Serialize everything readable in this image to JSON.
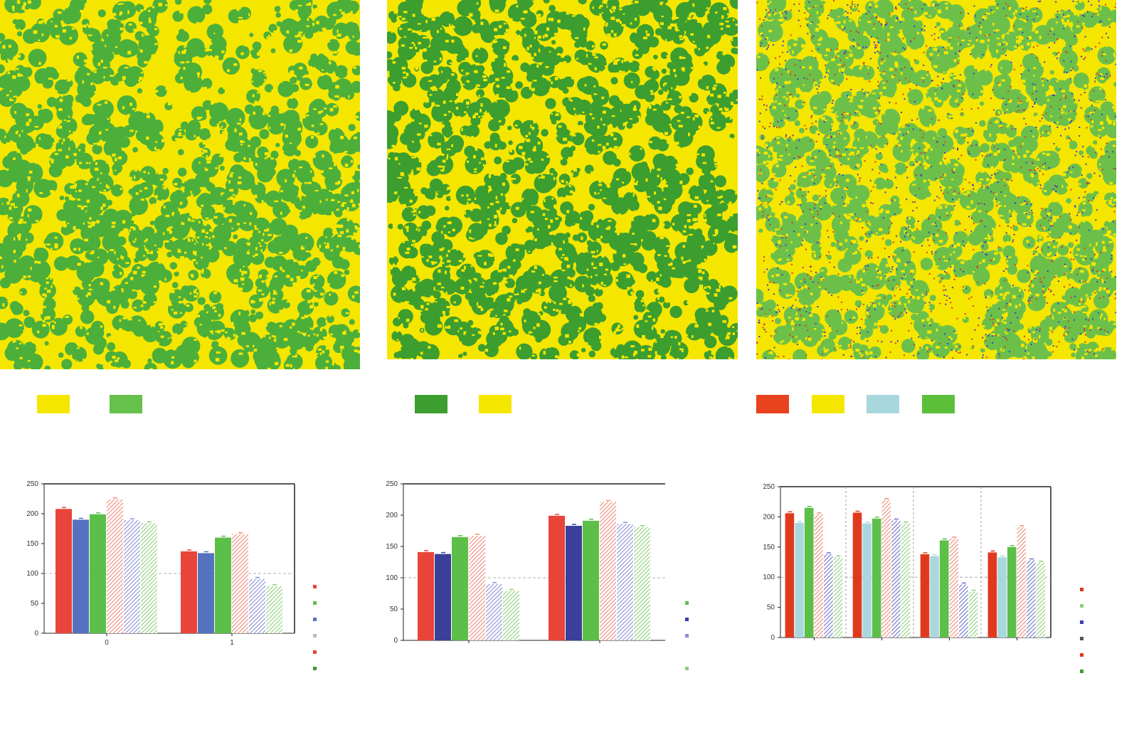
{
  "maps": [
    {
      "name": "map-left",
      "base": "#f5e600",
      "classes": [
        "#f5e600",
        "#4caf3a"
      ]
    },
    {
      "name": "map-middle",
      "base": "#f5e600",
      "classes": [
        "#f5e600",
        "#3c9e2e"
      ]
    },
    {
      "name": "map-right",
      "base": "#f5e600",
      "classes": [
        "#f5e600",
        "#6cc04a",
        "#d93a1f",
        "#3a3fc0"
      ]
    }
  ],
  "legend_swatches": [
    [
      "#f5e600",
      "#66c14a"
    ],
    [
      "#3c9e2e",
      "#f5e600"
    ],
    [
      "#e8421e",
      "#f5e600",
      "#a8d8de",
      "#5cbf3a"
    ]
  ],
  "chart_data": [
    {
      "type": "bar",
      "title": "",
      "xlabel": "",
      "ylabel": "",
      "ylim": [
        0,
        250
      ],
      "yticks": [
        "0",
        "50",
        "100",
        "150",
        "200",
        "250"
      ],
      "categories": [
        "0",
        "1"
      ],
      "series": [
        {
          "color": "#e8443a",
          "style": "solid",
          "values": [
            208,
            137
          ]
        },
        {
          "color": "#5572c0",
          "style": "solid",
          "values": [
            190,
            134
          ]
        },
        {
          "color": "#5cbf4a",
          "style": "solid",
          "values": [
            199,
            160
          ]
        },
        {
          "color": "#f08a7a",
          "style": "hatched",
          "values": [
            224,
            166
          ]
        },
        {
          "color": "#8a90d8",
          "style": "hatched",
          "values": [
            189,
            91
          ]
        },
        {
          "color": "#8ed07a",
          "style": "hatched",
          "values": [
            184,
            79
          ]
        }
      ],
      "legend": {
        "placement": "right",
        "colors": [
          "#e8443a",
          "#5cbf4a",
          "#5572c0",
          "#bbbbbb",
          "#e8443a",
          "#3c9e2e"
        ]
      }
    },
    {
      "type": "bar",
      "title": "",
      "xlabel": "",
      "ylabel": "",
      "ylim": [
        0,
        250
      ],
      "yticks": [
        "0",
        "50",
        "100",
        "150",
        "200",
        "250"
      ],
      "categories": [
        "",
        ""
      ],
      "series": [
        {
          "color": "#e8443a",
          "style": "solid",
          "values": [
            141,
            199
          ]
        },
        {
          "color": "#3a3f9a",
          "style": "solid",
          "values": [
            138,
            183
          ]
        },
        {
          "color": "#5cbf4a",
          "style": "solid",
          "values": [
            165,
            191
          ]
        },
        {
          "color": "#f08a7a",
          "style": "hatched",
          "values": [
            167,
            221
          ]
        },
        {
          "color": "#8a90d8",
          "style": "hatched",
          "values": [
            90,
            186
          ]
        },
        {
          "color": "#8ed07a",
          "style": "hatched",
          "values": [
            79,
            181
          ]
        }
      ],
      "legend": {
        "placement": "right",
        "colors": [
          "#ffffff",
          "#5cbf4a",
          "#3a3f9a",
          "#8a90d8",
          "#ffffff",
          "#8ed07a"
        ]
      }
    },
    {
      "type": "bar",
      "title": "",
      "xlabel": "",
      "ylabel": "",
      "ylim": [
        0,
        250
      ],
      "yticks": [
        "0",
        "50",
        "100",
        "150",
        "200",
        "250"
      ],
      "categories": [
        "",
        "",
        "",
        ""
      ],
      "series": [
        {
          "color": "#e03a1e",
          "style": "solid",
          "values": [
            206,
            207,
            138,
            141
          ]
        },
        {
          "color": "#a8d8de",
          "style": "solid",
          "values": [
            190,
            189,
            135,
            133
          ]
        },
        {
          "color": "#5cbf4a",
          "style": "solid",
          "values": [
            215,
            197,
            161,
            150
          ]
        },
        {
          "color": "#f08a7a",
          "style": "hatched",
          "values": [
            204,
            228,
            164,
            183
          ]
        },
        {
          "color": "#6a70c8",
          "style": "hatched",
          "values": [
            138,
            194,
            88,
            128
          ]
        },
        {
          "color": "#8ed07a",
          "style": "hatched",
          "values": [
            133,
            189,
            76,
            124
          ]
        }
      ],
      "legend": {
        "placement": "right",
        "colors": [
          "#e03a1e",
          "#8ed07a",
          "#3a3fc0",
          "#555555",
          "#e03a1e",
          "#3c9e2e"
        ]
      }
    }
  ]
}
